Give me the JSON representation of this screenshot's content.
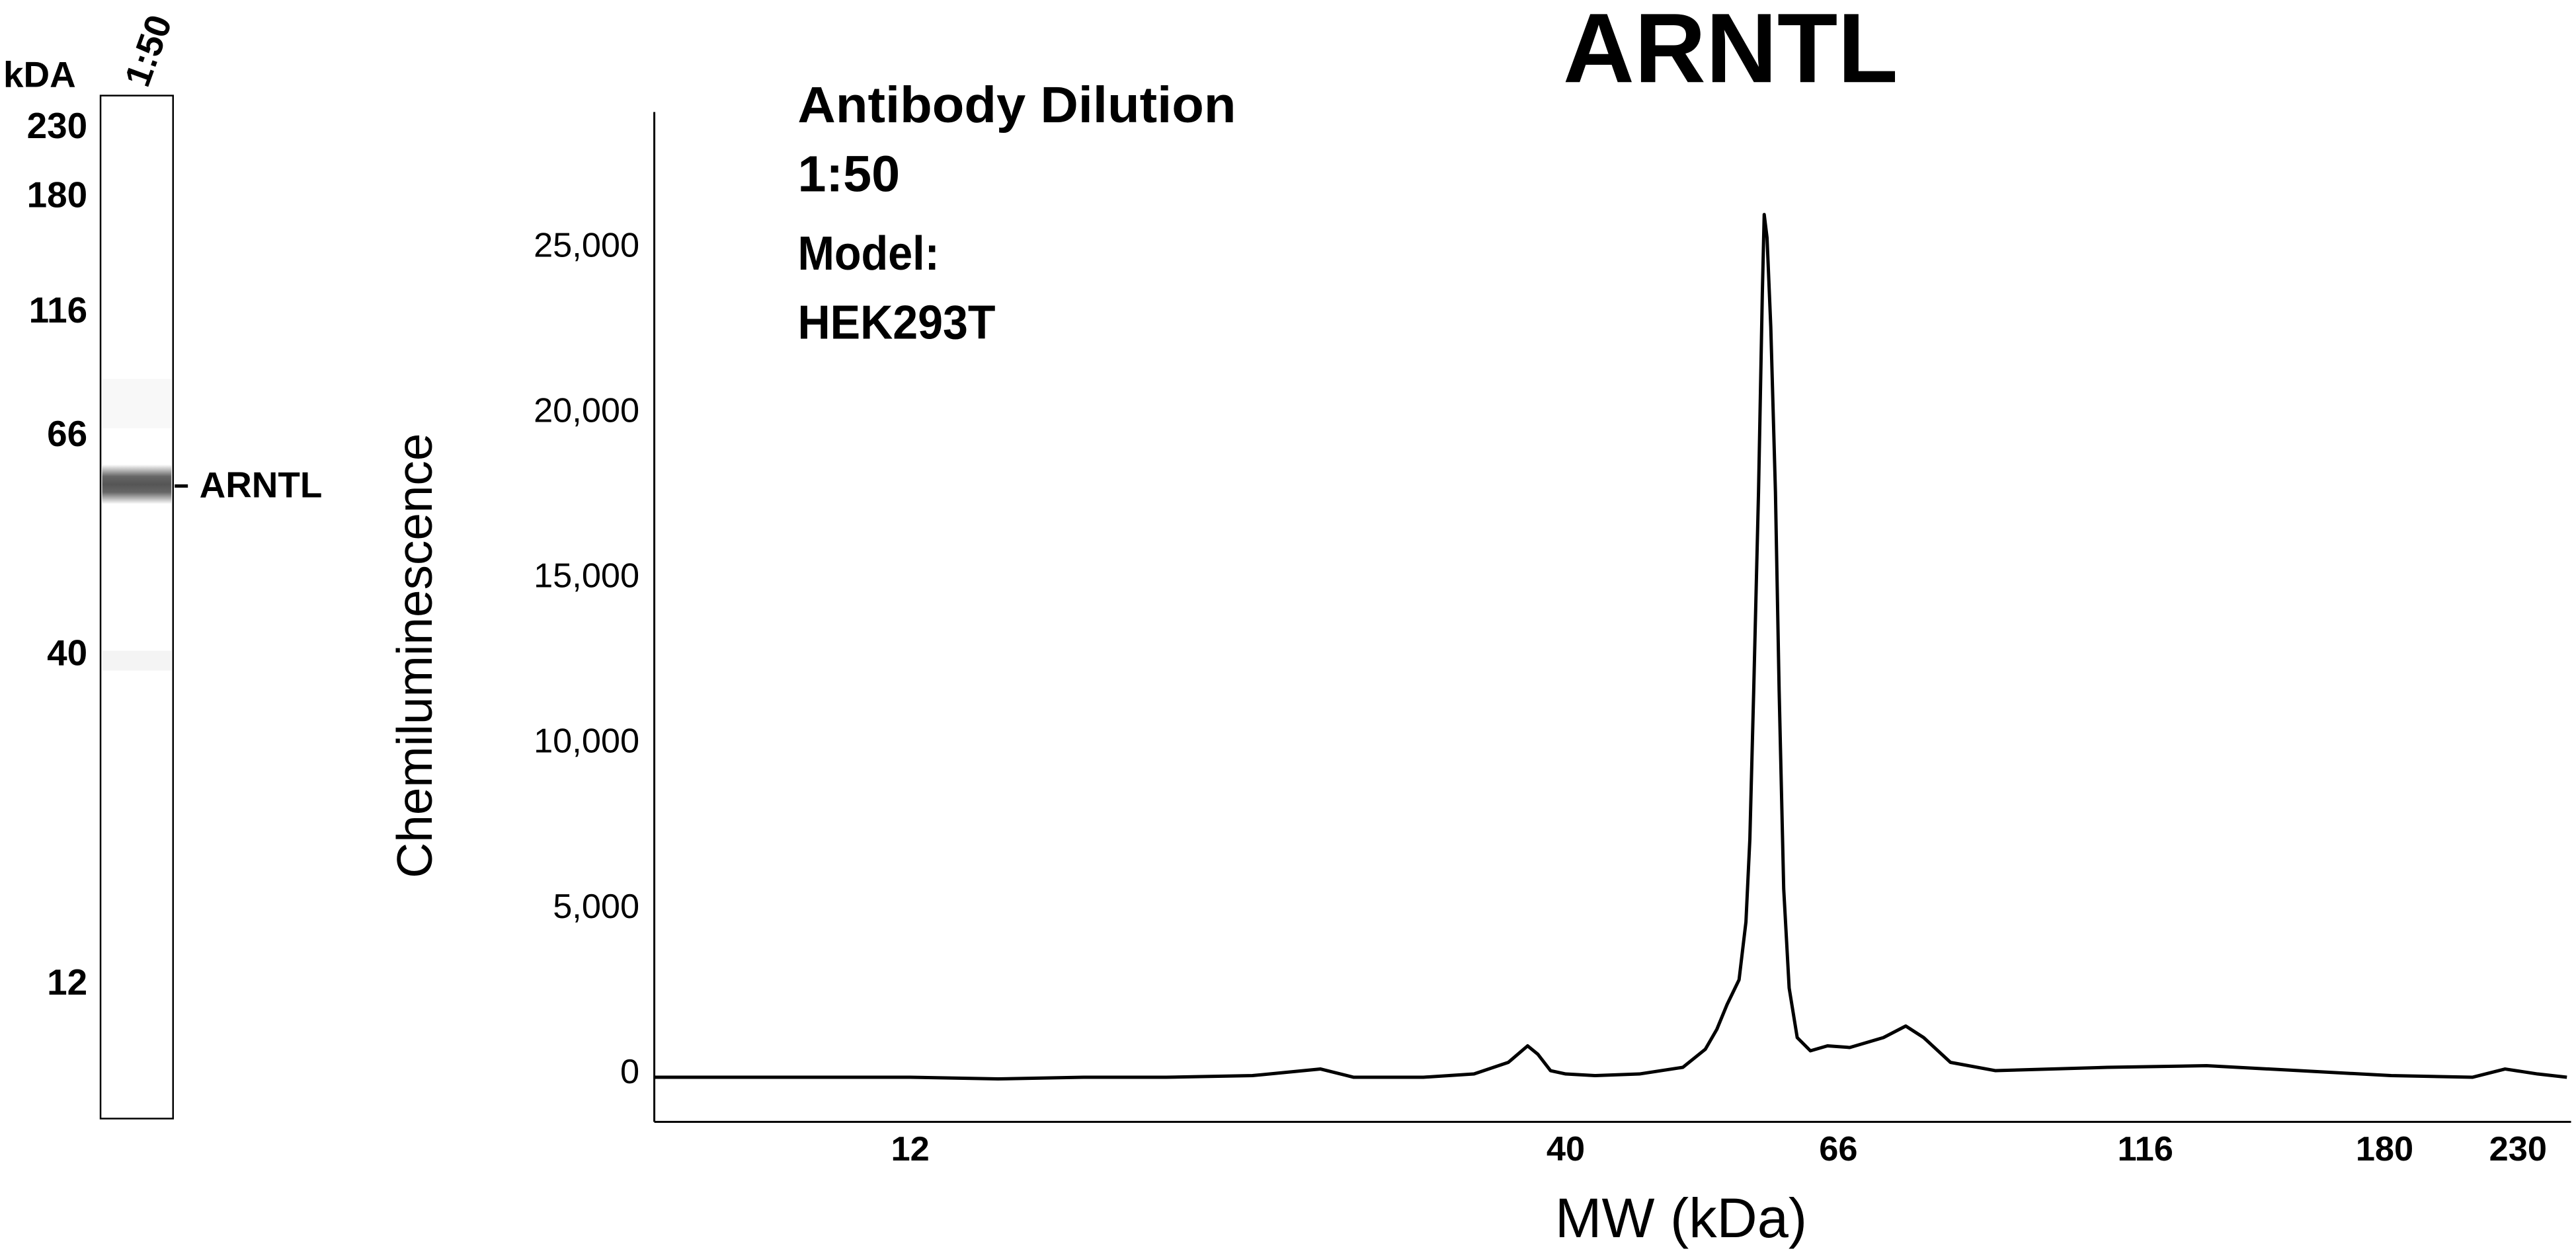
{
  "chart_data": {
    "type": "line",
    "title": "ARNTL",
    "annotations": [
      "Antibody Dilution",
      "1:50",
      "Model:",
      "HEK293T"
    ],
    "x_label": "MW (kDa)",
    "y_label": "Chemiluminescence",
    "xscale": "log",
    "grid": false,
    "xlim": [
      7.5,
      252
    ],
    "xticks": [
      12,
      40,
      66,
      116,
      180,
      230
    ],
    "ylim": [
      -1450,
      29100
    ],
    "yticks": [
      0,
      {
        "value": 5000,
        "label": "5,000"
      },
      {
        "value": 10000,
        "label": "10,000"
      },
      {
        "value": 15000,
        "label": "15,000"
      },
      {
        "value": 20000,
        "label": "20,000"
      },
      {
        "value": 25000,
        "label": "25,000"
      }
    ],
    "series": [
      {
        "color": "#000000",
        "x": [
          7.5,
          8.8,
          10.3,
          12,
          14.1,
          16.5,
          19.2,
          22.5,
          25.5,
          27.1,
          30.8,
          33.8,
          36.0,
          37.3,
          38.0,
          38.9,
          40,
          42.2,
          45.8,
          49.6,
          51.7,
          52.8,
          53.8,
          55.0,
          55.7,
          56.1,
          56.5,
          57.0,
          57.4,
          57.6,
          57.9,
          58.3,
          58.8,
          59.2,
          59.7,
          60.3,
          61.2,
          62.7,
          64.7,
          67.4,
          71.7,
          74.7,
          77.2,
          81.1,
          88.1,
          108.2,
          129.8,
          153.9,
          182.2,
          211.5,
          224.6,
          238.4,
          251.6
        ],
        "values": [
          -100,
          -100,
          -100,
          -100,
          -150,
          -100,
          -100,
          -50,
          150,
          -100,
          -100,
          0,
          350,
          850,
          600,
          100,
          0,
          -50,
          0,
          200,
          750,
          1350,
          2100,
          2850,
          4600,
          7100,
          11600,
          17600,
          23600,
          26000,
          25300,
          22600,
          17600,
          11600,
          5600,
          2600,
          1100,
          700,
          850,
          800,
          1100,
          1450,
          1100,
          350,
          100,
          200,
          250,
          100,
          -50,
          -100,
          150,
          0,
          -100
        ]
      }
    ]
  },
  "blot": {
    "unit_label": "kDA",
    "lane_label": "1:50",
    "markers": [
      230,
      180,
      116,
      66,
      40,
      12
    ],
    "band_label": "ARNTL"
  }
}
